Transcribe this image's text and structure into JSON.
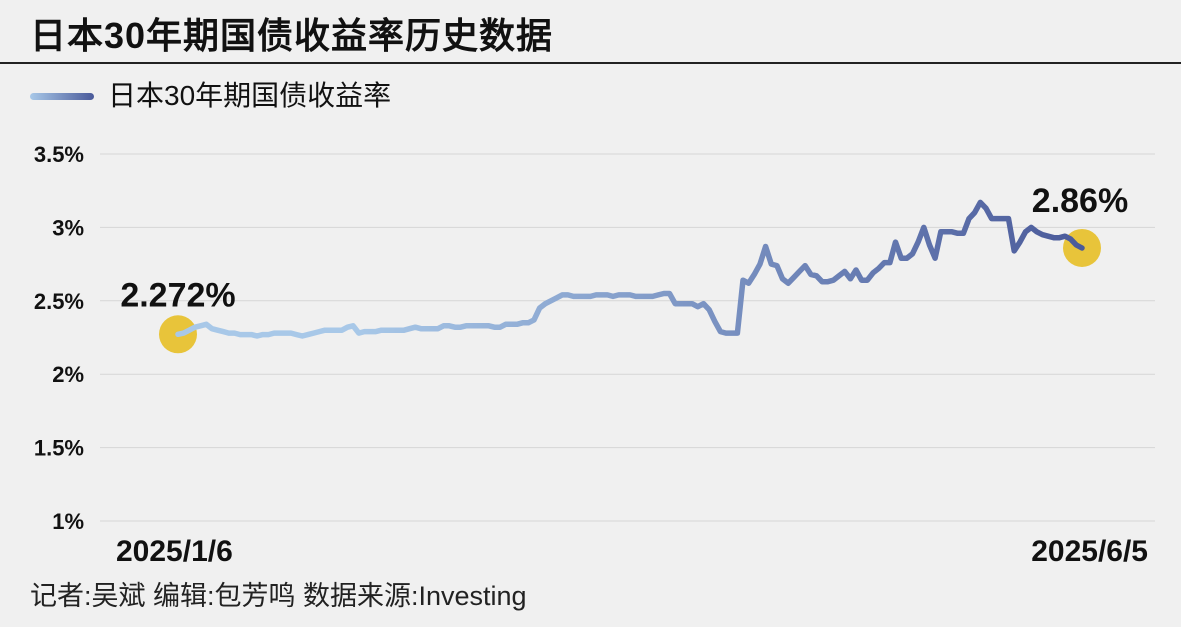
{
  "header": {
    "title": "日本30年期国债收益率历史数据"
  },
  "footer": {
    "credit": "记者:吴斌  编辑:包芳鸣  数据来源:Investing"
  },
  "chart_data": {
    "type": "line",
    "title": "日本30年期国债收益率历史数据",
    "xlabel": "",
    "ylabel": "",
    "ylim": [
      1.0,
      3.5
    ],
    "y_ticks": [
      1.0,
      1.5,
      2.0,
      2.5,
      3.0,
      3.5
    ],
    "y_tick_labels": [
      "1%",
      "1.5%",
      "2%",
      "2.5%",
      "3%",
      "3.5%"
    ],
    "grid": true,
    "legend_position": "top-left",
    "x_start_label": "2025/1/6",
    "x_end_label": "2025/6/5",
    "colors": {
      "line_start": "#a8c8e8",
      "line_end": "#4a5a9a",
      "highlight": "#e8c43a",
      "grid": "#d6d6d6"
    },
    "series": [
      {
        "name": "日本30年期国债收益率",
        "values": [
          2.272,
          2.28,
          2.3,
          2.32,
          2.33,
          2.34,
          2.31,
          2.3,
          2.29,
          2.28,
          2.28,
          2.27,
          2.27,
          2.27,
          2.26,
          2.27,
          2.27,
          2.28,
          2.28,
          2.28,
          2.28,
          2.27,
          2.26,
          2.27,
          2.28,
          2.29,
          2.3,
          2.3,
          2.3,
          2.3,
          2.32,
          2.33,
          2.28,
          2.29,
          2.29,
          2.29,
          2.3,
          2.3,
          2.3,
          2.3,
          2.3,
          2.31,
          2.32,
          2.31,
          2.31,
          2.31,
          2.31,
          2.33,
          2.33,
          2.32,
          2.32,
          2.33,
          2.33,
          2.33,
          2.33,
          2.33,
          2.32,
          2.32,
          2.34,
          2.34,
          2.34,
          2.35,
          2.35,
          2.37,
          2.45,
          2.48,
          2.5,
          2.52,
          2.54,
          2.54,
          2.53,
          2.53,
          2.53,
          2.53,
          2.54,
          2.54,
          2.54,
          2.53,
          2.54,
          2.54,
          2.54,
          2.53,
          2.53,
          2.53,
          2.53,
          2.54,
          2.55,
          2.55,
          2.48,
          2.48,
          2.48,
          2.48,
          2.46,
          2.48,
          2.44,
          2.36,
          2.29,
          2.28,
          2.28,
          2.28,
          2.64,
          2.62,
          2.68,
          2.75,
          2.87,
          2.75,
          2.74,
          2.65,
          2.62,
          2.66,
          2.7,
          2.74,
          2.68,
          2.67,
          2.63,
          2.63,
          2.64,
          2.67,
          2.7,
          2.65,
          2.71,
          2.64,
          2.64,
          2.69,
          2.72,
          2.76,
          2.76,
          2.9,
          2.79,
          2.79,
          2.82,
          2.9,
          3.0,
          2.88,
          2.79,
          2.97,
          2.97,
          2.97,
          2.96,
          2.96,
          3.06,
          3.1,
          3.17,
          3.13,
          3.06,
          3.06,
          3.06,
          3.06,
          2.84,
          2.9,
          2.97,
          3.0,
          2.97,
          2.95,
          2.94,
          2.93,
          2.93,
          2.94,
          2.92,
          2.88,
          2.86
        ]
      }
    ],
    "annotations": [
      {
        "text": "2.272%",
        "point": "first"
      },
      {
        "text": "2.86%",
        "point": "last"
      }
    ]
  }
}
